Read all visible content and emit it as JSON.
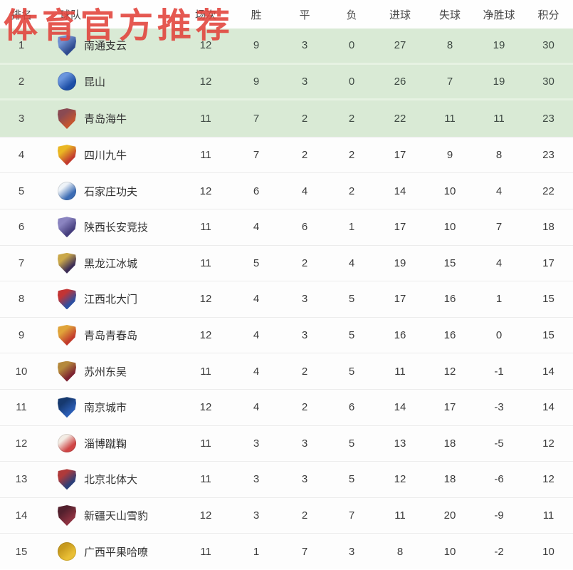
{
  "watermark": {
    "text": "体育官方推荐",
    "color": "#e2423a"
  },
  "colors": {
    "promotion_row_bg": "#d9ead5",
    "promotion_divider": "#e6f2e2",
    "normal_row_bg": "#fdfdfd",
    "row_divider": "#ececec",
    "header_text": "#4a4a4a",
    "cell_text": "#3f4a44"
  },
  "table": {
    "columns": [
      "排名",
      "球队",
      "场次",
      "胜",
      "平",
      "负",
      "进球",
      "失球",
      "净胜球",
      "积分"
    ],
    "rows": [
      {
        "rank": "1",
        "team": "南通支云",
        "zone": "promotion",
        "logo": {
          "shape": "shield",
          "c1": "#2e4a8f",
          "c2": "#7090d0"
        },
        "stats": [
          "12",
          "9",
          "3",
          "0",
          "27",
          "8",
          "19",
          "30"
        ]
      },
      {
        "rank": "2",
        "team": "昆山",
        "zone": "promotion",
        "logo": {
          "shape": "circle",
          "c1": "#1d4ea6",
          "c2": "#6a95dd"
        },
        "stats": [
          "12",
          "9",
          "3",
          "0",
          "26",
          "7",
          "19",
          "30"
        ]
      },
      {
        "rank": "3",
        "team": "青岛海牛",
        "zone": "promotion",
        "logo": {
          "shape": "shield",
          "c1": "#c45530",
          "c2": "#8a4a52"
        },
        "stats": [
          "11",
          "7",
          "2",
          "2",
          "22",
          "11",
          "11",
          "23"
        ]
      },
      {
        "rank": "4",
        "team": "四川九牛",
        "zone": "normal",
        "logo": {
          "shape": "shield",
          "c1": "#c23b2e",
          "c2": "#eab723"
        },
        "stats": [
          "11",
          "7",
          "2",
          "2",
          "17",
          "9",
          "8",
          "23"
        ]
      },
      {
        "rank": "5",
        "team": "石家庄功夫",
        "zone": "normal",
        "logo": {
          "shape": "circle",
          "c1": "#3c6cb4",
          "c2": "#eef3f8"
        },
        "stats": [
          "12",
          "6",
          "4",
          "2",
          "14",
          "10",
          "4",
          "22"
        ]
      },
      {
        "rank": "6",
        "team": "陕西长安竞技",
        "zone": "normal",
        "logo": {
          "shape": "shield",
          "c1": "#463f7e",
          "c2": "#8a84c0"
        },
        "stats": [
          "11",
          "4",
          "6",
          "1",
          "17",
          "10",
          "7",
          "18"
        ]
      },
      {
        "rank": "7",
        "team": "黑龙江冰城",
        "zone": "normal",
        "logo": {
          "shape": "shield",
          "c1": "#3b2c55",
          "c2": "#caa84a"
        },
        "stats": [
          "11",
          "5",
          "2",
          "4",
          "19",
          "15",
          "4",
          "17"
        ]
      },
      {
        "rank": "8",
        "team": "江西北大门",
        "zone": "normal",
        "logo": {
          "shape": "shield",
          "c1": "#2d4fa1",
          "c2": "#c33434"
        },
        "stats": [
          "12",
          "4",
          "3",
          "5",
          "17",
          "16",
          "1",
          "15"
        ]
      },
      {
        "rank": "9",
        "team": "青岛青春岛",
        "zone": "normal",
        "logo": {
          "shape": "shield",
          "c1": "#c13a2b",
          "c2": "#e0a43a"
        },
        "stats": [
          "12",
          "4",
          "3",
          "5",
          "16",
          "16",
          "0",
          "15"
        ]
      },
      {
        "rank": "10",
        "team": "苏州东吴",
        "zone": "normal",
        "logo": {
          "shape": "shield",
          "c1": "#7c2230",
          "c2": "#b5893c"
        },
        "stats": [
          "11",
          "4",
          "2",
          "5",
          "11",
          "12",
          "-1",
          "14"
        ]
      },
      {
        "rank": "11",
        "team": "南京城市",
        "zone": "normal",
        "logo": {
          "shape": "shield",
          "c1": "#2a5cb3",
          "c2": "#16396f"
        },
        "stats": [
          "12",
          "4",
          "2",
          "6",
          "14",
          "17",
          "-3",
          "14"
        ]
      },
      {
        "rank": "12",
        "team": "淄博蹴鞠",
        "zone": "normal",
        "logo": {
          "shape": "circle",
          "c1": "#cf4545",
          "c2": "#f3ece4"
        },
        "stats": [
          "11",
          "3",
          "3",
          "5",
          "13",
          "18",
          "-5",
          "12"
        ]
      },
      {
        "rank": "13",
        "team": "北京北体大",
        "zone": "normal",
        "logo": {
          "shape": "shield",
          "c1": "#2c3f78",
          "c2": "#b03a3a"
        },
        "stats": [
          "11",
          "3",
          "3",
          "5",
          "12",
          "18",
          "-6",
          "12"
        ]
      },
      {
        "rank": "14",
        "team": "新疆天山雪豹",
        "zone": "normal",
        "logo": {
          "shape": "shield",
          "c1": "#8c3140",
          "c2": "#53202d"
        },
        "stats": [
          "12",
          "3",
          "2",
          "7",
          "11",
          "20",
          "-9",
          "11"
        ]
      },
      {
        "rank": "15",
        "team": "广西平果哈嘹",
        "zone": "normal",
        "logo": {
          "shape": "circle",
          "c1": "#e9bf35",
          "c2": "#c79a1e"
        },
        "stats": [
          "11",
          "1",
          "7",
          "3",
          "8",
          "10",
          "-2",
          "10"
        ]
      }
    ]
  }
}
